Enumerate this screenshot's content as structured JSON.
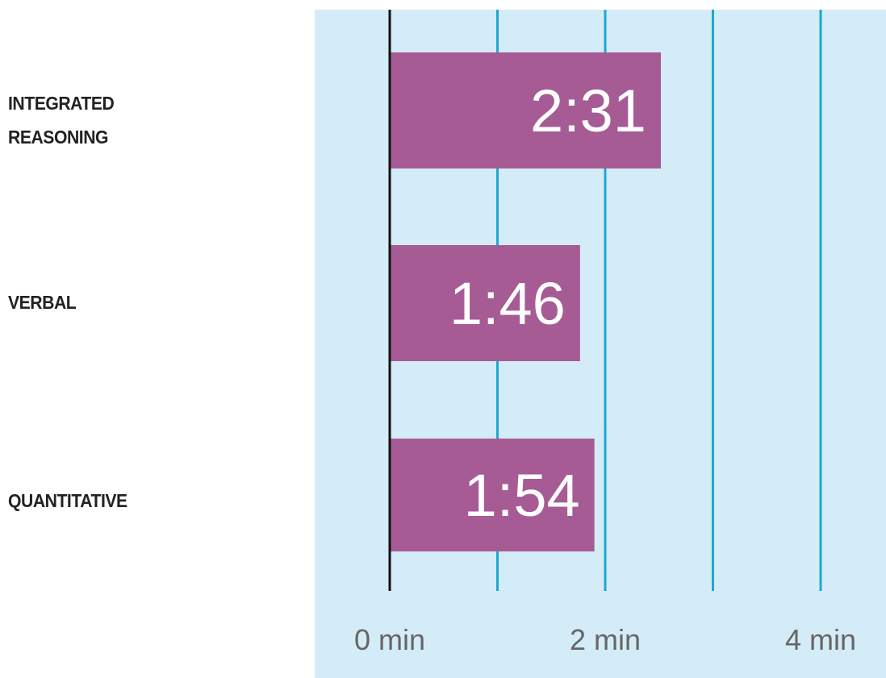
{
  "chart_data": {
    "type": "bar",
    "orientation": "horizontal",
    "categories": [
      [
        "INTEGRATED",
        "REASONING"
      ],
      [
        "VERBAL"
      ],
      [
        "QUANTITATIVE"
      ]
    ],
    "values": [
      2.5167,
      1.7667,
      1.9
    ],
    "data_labels": [
      "2:31",
      "1:46",
      "1:54"
    ],
    "x_ticks": [
      {
        "value": 0,
        "label": "0 min"
      },
      {
        "value": 2,
        "label": "2 min"
      },
      {
        "value": 4,
        "label": "4 min"
      }
    ],
    "gridlines": [
      1,
      2,
      3,
      4
    ],
    "xlim": [
      0,
      4.5
    ],
    "xunit": "min",
    "grid": true,
    "legend": "none"
  },
  "colors": {
    "plot_background": "#d3ecf8",
    "bar": "#a75b95",
    "gridline": "#1ea8d2",
    "axis": "#111111",
    "bar_label": "#ffffff",
    "tick_label": "#666666"
  }
}
